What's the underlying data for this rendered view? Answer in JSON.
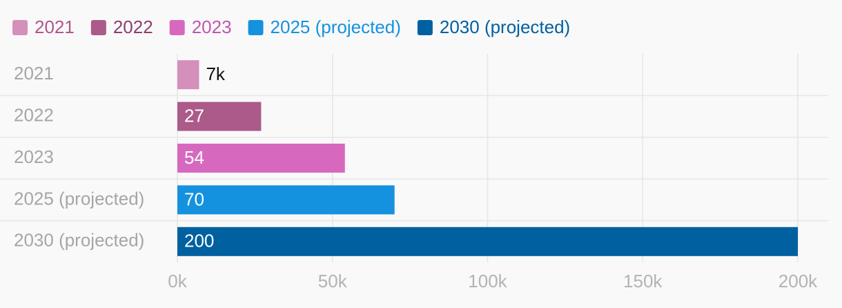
{
  "chart_data": {
    "type": "bar",
    "orientation": "horizontal",
    "categories": [
      "2021",
      "2022",
      "2023",
      "2025 (projected)",
      "2030 (projected)"
    ],
    "values": [
      7000,
      27000,
      54000,
      70000,
      200000
    ],
    "value_labels": [
      "7k",
      "27",
      "54",
      "70",
      "200"
    ],
    "colors": [
      "#d48fbb",
      "#ab5a89",
      "#d669be",
      "#1592df",
      "#0060a0"
    ],
    "legend": {
      "position": "top-left",
      "entries": [
        "2021",
        "2022",
        "2023",
        "2025 (projected)",
        "2030 (projected)"
      ],
      "text_colors": [
        "#b3558c",
        "#8f3d6c",
        "#c256ad",
        "#1592df",
        "#0060a0"
      ]
    },
    "x_ticks": [
      0,
      50000,
      100000,
      150000,
      200000
    ],
    "x_tick_labels": [
      "0k",
      "50k",
      "100k",
      "150k",
      "200k"
    ],
    "xlim": [
      0,
      200000
    ],
    "grid": true,
    "title": "",
    "xlabel": "",
    "ylabel": ""
  }
}
